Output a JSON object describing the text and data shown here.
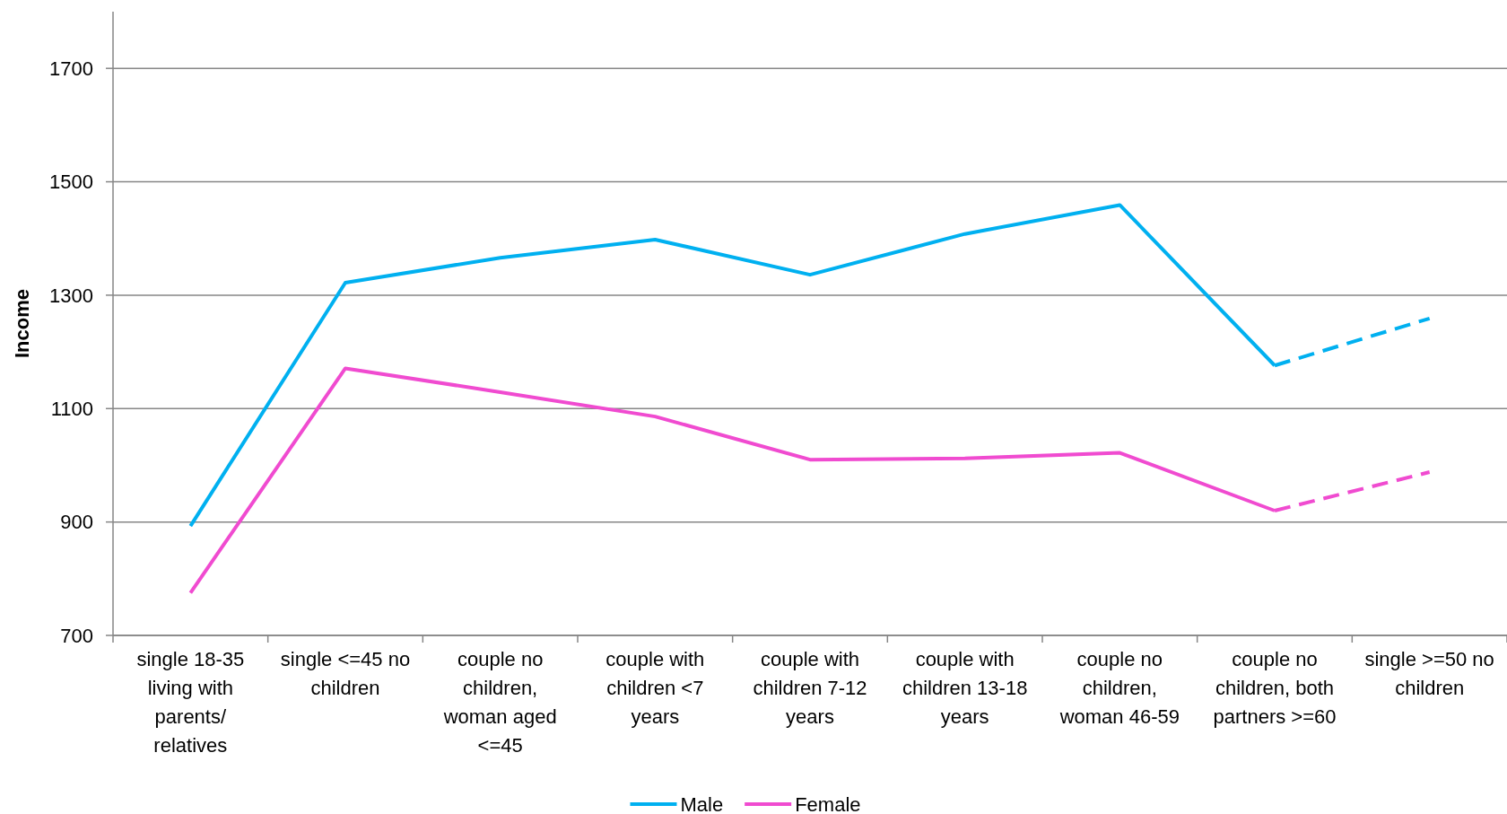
{
  "chart_data": {
    "type": "line",
    "ylabel": "Income",
    "categories": [
      "single 18-35 living with parents/relatives",
      "single <=45 no children",
      "couple no children, woman aged <=45",
      "couple with children <7 years",
      "couple with children 7-12 years",
      "couple with children 13-18 years",
      "couple no children, woman 46-59",
      "couple no children, both partners >=60",
      "single >=50 no children"
    ],
    "series": [
      {
        "name": "Male",
        "color": "#00b0f0",
        "line_style": "solid",
        "values": [
          893,
          1322,
          1366,
          1398,
          1336,
          1408,
          1459,
          1176,
          null
        ]
      },
      {
        "name": "Female",
        "color": "#f04bd0",
        "line_style": "solid",
        "values": [
          775,
          1171,
          1129,
          1086,
          1010,
          1012,
          1022,
          920,
          null
        ]
      },
      {
        "color": "#00b0f0",
        "line_style": "dashed",
        "values": [
          null,
          null,
          null,
          null,
          null,
          null,
          null,
          1176,
          1259
        ]
      },
      {
        "color": "#f04bd0",
        "line_style": "dashed",
        "values": [
          null,
          null,
          null,
          null,
          null,
          null,
          null,
          920,
          988
        ]
      }
    ],
    "ylim": [
      700,
      1800
    ],
    "yticks": [
      700,
      900,
      1100,
      1300,
      1500,
      1700
    ],
    "grid": "y",
    "legend": "bottom"
  }
}
